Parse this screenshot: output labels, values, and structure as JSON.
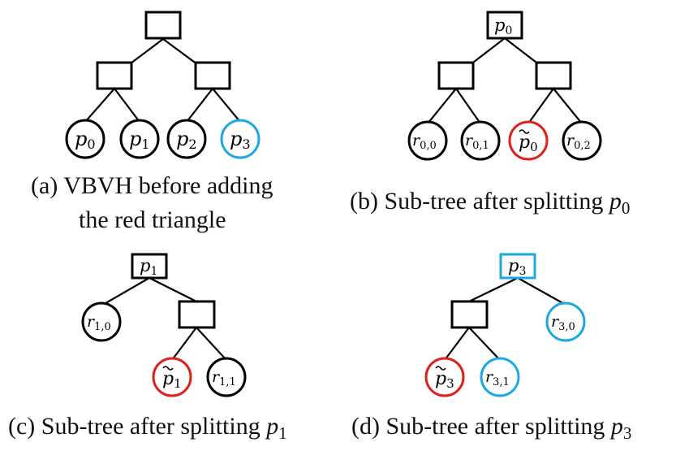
{
  "panels": {
    "a": {
      "caption_line1": "(a) VBVH before adding",
      "caption_line2": "the red triangle",
      "leaves": [
        "p",
        "p",
        "p",
        "p"
      ],
      "leaf_subs": [
        "0",
        "1",
        "2",
        "3"
      ]
    },
    "b": {
      "caption": "(b) Sub-tree after splitting ",
      "caption_var": "p",
      "caption_sub": "0",
      "root_label": "p",
      "root_sub": "0",
      "leaves": [
        "r",
        "r",
        "p",
        "r"
      ],
      "leaf_subs": [
        "0,0",
        "0,1",
        "0",
        "0,2"
      ]
    },
    "c": {
      "caption": "(c) Sub-tree after splitting ",
      "caption_var": "p",
      "caption_sub": "1",
      "root_label": "p",
      "root_sub": "1",
      "leaves": [
        "r",
        "p",
        "r"
      ],
      "leaf_subs": [
        "1,0",
        "1",
        "1,1"
      ]
    },
    "d": {
      "caption": "(d) Sub-tree after splitting ",
      "caption_var": "p",
      "caption_sub": "3",
      "root_label": "p",
      "root_sub": "3",
      "leaves": [
        "r",
        "p",
        "r"
      ],
      "leaf_subs": [
        "3,0",
        "3",
        "3,1"
      ]
    }
  },
  "colors": {
    "red": "#e0201b",
    "blue": "#1ea7e1",
    "black": "#000000"
  }
}
